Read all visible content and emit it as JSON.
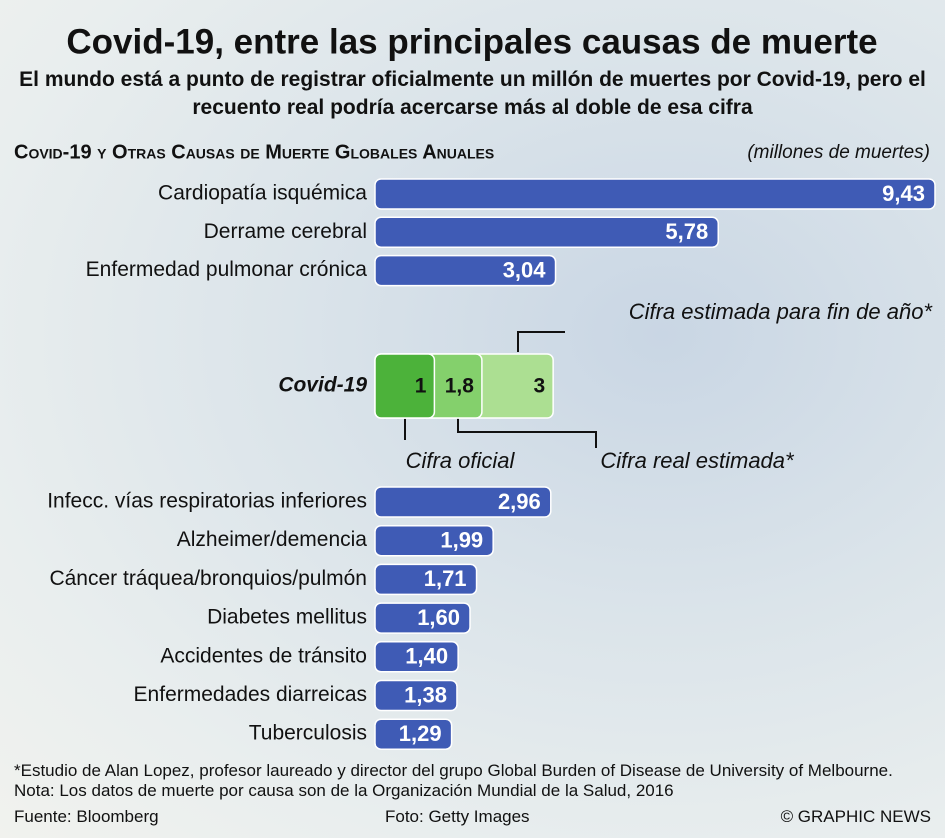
{
  "chart_data": {
    "type": "bar",
    "title": "Covid-19, entre las principales causas de muerte",
    "subtitle": "El mundo está a punto de registrar oficialmente un millón de muertes por Covid-19, pero el recuento real podría acercarse más al doble de esa cifra",
    "chart_title": "Covid-19 y Otras Causas de Muerte Globales Anuales",
    "unit_note": "(millones de muertes)",
    "color": "#3f5bb5",
    "categories": [
      "Cardiopatía isquémica",
      "Derrame cerebral",
      "Enfermedad pulmonar crónica",
      "Infecc. vías respiratorias inferiores",
      "Alzheimer/demencia",
      "Cáncer tráquea/bronquios/pulmón",
      "Diabetes mellitus",
      "Accidentes de tránsito",
      "Enfermedades diarreicas",
      "Tuberculosis"
    ],
    "values": [
      9.43,
      5.78,
      3.04,
      2.96,
      1.99,
      1.71,
      1.6,
      1.4,
      1.38,
      1.29
    ],
    "value_labels": [
      "9,43",
      "5,78",
      "3,04",
      "2,96",
      "1,99",
      "1,71",
      "1,60",
      "1,40",
      "1,38",
      "1,29"
    ],
    "covid": {
      "label": "Covid-19",
      "values": [
        1,
        1.8,
        3
      ],
      "value_labels": [
        "1",
        "1,8",
        "3"
      ],
      "colors": [
        "#4cb23a",
        "#84d06c",
        "#acdf92"
      ],
      "annotations": [
        "Cifra oficial",
        "Cifra real estimada*",
        "Cifra estimada para fin de año*"
      ]
    },
    "footnote": "*Estudio de Alan Lopez, profesor laureado y director del grupo Global Burden of Disease de University of Melbourne. Nota: Los datos de muerte por causa son de la Organización Mundial de la Salud, 2016",
    "source": "Fuente: Bloomberg",
    "photo_credit": "Foto: Getty Images",
    "credit": "© GRAPHIC NEWS"
  }
}
